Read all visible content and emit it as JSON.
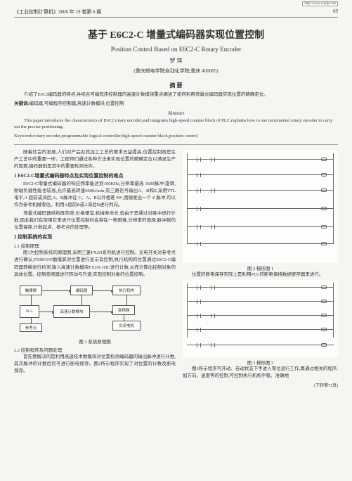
{
  "watermark": "http://www.cqvip.com",
  "journal_header": "《工业控制计算机》2006 年 19 卷第 6 期",
  "page_number": "69",
  "title_cn": "基于 E6C2-C 增量式编码器实现位置控制",
  "title_en": "Position Control Based on E6C2-C Rotary Encoder",
  "author": "罗  萍",
  "affiliation": "(重庆邮电学院自动化学院,重庆 400065)",
  "abstract_label_cn": "摘  要",
  "abstract_cn": "介绍了E6C2编码器的特点,并结合可编程序控制器的高速计数模块重点阐述了如何利用增量式编码器实现位置的精确定位。",
  "keywords_label_cn": "关键词:",
  "keywords_cn": "编码器,可编程序控制器,高速计数模块,位置控制",
  "abstract_label_en": "Abstract",
  "abstract_en": "This paper introduces the characteristics of E6C2 rotary encoder,and integrates high-speed counter block of PLC,explains how to use incremental rotary encoder to carry out the precise positioning.",
  "keywords_label_en": "Keywords:",
  "keywords_en": "rotary encoder,programmable logical controller,high-speed counter block,position control",
  "left": {
    "p1": "随着社会的发展,人们对产品及其加工工艺的要求日益提高,位置控制则是生产工艺中的重要一环。工程师们通过各种方法来实现位置的精确定位以满足生产的需要,编码器则是其中的重要检测元件。",
    "s1": "1  E6C2-C增量式编码器特点及实现位置控制的难点",
    "p2": "E6C2-C增量式编码器的响应频率能达到100KHz,分辨率最高 3600脉冲/旋转,耐轴负载性能也较高,允许最高转速6000r/min,有三路信号输出A、B和Z,采用TTL电平,A 超前或滞后,A、B脉冲在 C、A、B以外相差 90°,而随发出一个 Z 脉冲,可以作为参考机械零位。利用A超前B或A滞后B进行判向。",
    "p3": "增量式编码器结构既简单,价格便宜,机械寿命长,但由于是通过对脉冲进行计数,因此我们在使用它来进行位置控制时会存在一些困难,分辨率的选择,脉冲制的位置保存,计数起点、参考点的处理等。",
    "s2": "2  控制系统的实现",
    "s2_1": "2.1  控制原理",
    "p4": "图1为控制系统的原理图,采用三菱FX2N系列机进行控制。光电开关对参考点进行确认,F930GOT触摸屏对位置进行显示及控制,执行机构的位置通过E6C2-C编码器转换进行检测,输入高速计数模块FX2N-1HC进行计数,从而计算出控制对象的具体位置。控制变频器进行转动与升速,实现控制对象的位置控制。",
    "s2_2": "2.2  控制程序及问题处理",
    "p5": "首先要解决的是利用高速技术数模块对位置检测编码器的输出脉冲进行计数,其次脉冲的计数后信号进行断电保存。图2所示程序实现了对位置的计数及断电保存。",
    "fig1_caption": "图 1  系统原理图",
    "bd": {
      "touch": "触摸屏",
      "encoder": "编码器",
      "exec": "执行机构",
      "plc": "PLC",
      "hsc": "高速计数模块",
      "vfd": "变频器",
      "sw": "参考点",
      "motor": "交流电机"
    }
  },
  "right": {
    "fig2_caption": "图 2  梯形图 1",
    "p1": "位置的断电保存实际上是利用PLC的断电保持数据寄存器来进行。",
    "fig3_caption": "图 3  梯形图 2",
    "p2": "图3所示程序可开动、自动状态下手进入零位运行工作,再通过相关的程序,如方向、速度等的控制,可控制执行机构平稳、准确地",
    "cont": "(下转第71页)"
  },
  "ladder": {
    "rung_positions": [
      12,
      34,
      56,
      82,
      108,
      132
    ],
    "left_rail": 6,
    "right_rail": 6
  },
  "ladder2": {
    "rung_positions": [
      10,
      30,
      50,
      70,
      92
    ],
    "h": 110
  },
  "colors": {
    "bg": "#f5f5f2",
    "text": "#333333",
    "rule": "#888888",
    "line": "#666666"
  }
}
